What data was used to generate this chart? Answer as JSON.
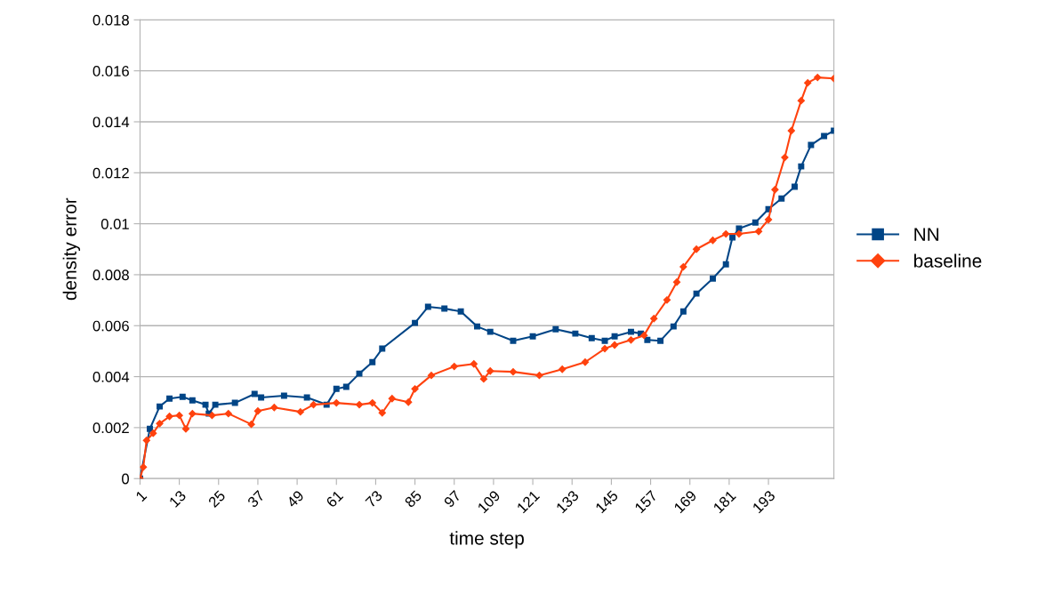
{
  "chart_data": {
    "type": "line",
    "xlabel": "time step",
    "ylabel": "density error",
    "xlim": [
      1,
      213
    ],
    "xticks": [
      1,
      13,
      25,
      37,
      49,
      61,
      73,
      85,
      97,
      109,
      121,
      133,
      145,
      157,
      169,
      181,
      193
    ],
    "ylim": [
      0,
      0.018
    ],
    "yticks": [
      0,
      0.002,
      0.004,
      0.006,
      0.008,
      0.01,
      0.012,
      0.014,
      0.016,
      0.018
    ],
    "grid": "y",
    "legend": "right",
    "series": [
      {
        "name": "NN",
        "color": "#004586",
        "marker": "square",
        "x": [
          1,
          4,
          7,
          10,
          14,
          17,
          21,
          22,
          24,
          30,
          36,
          38,
          45,
          52,
          58,
          61,
          64,
          68,
          72,
          75,
          85,
          89,
          94,
          99,
          104,
          108,
          115,
          121,
          128,
          134,
          139,
          143,
          146,
          151,
          154,
          156,
          160,
          164,
          167,
          171,
          176,
          180,
          182,
          184,
          189,
          193,
          197,
          201,
          203,
          206,
          210,
          213
        ],
        "values": [
          0,
          0.00195,
          0.00283,
          0.00314,
          0.00321,
          0.00307,
          0.0029,
          0.00255,
          0.0029,
          0.00297,
          0.00332,
          0.00318,
          0.00325,
          0.00318,
          0.0029,
          0.00352,
          0.0036,
          0.00412,
          0.00457,
          0.0051,
          0.00611,
          0.00674,
          0.00667,
          0.00656,
          0.00597,
          0.00576,
          0.00541,
          0.00558,
          0.00586,
          0.00569,
          0.00551,
          0.00541,
          0.00558,
          0.00576,
          0.00569,
          0.00544,
          0.00541,
          0.00597,
          0.00656,
          0.00726,
          0.00785,
          0.00841,
          0.00946,
          0.00981,
          0.01005,
          0.01057,
          0.01099,
          0.01145,
          0.01225,
          0.01309,
          0.01344,
          0.01365
        ]
      },
      {
        "name": "baseline",
        "color": "#ff420e",
        "marker": "diamond",
        "x": [
          1,
          2,
          3,
          5,
          7,
          10,
          13,
          15,
          17,
          23,
          28,
          35,
          37,
          42,
          50,
          54,
          61,
          68,
          72,
          75,
          78,
          83,
          85,
          90,
          97,
          103,
          106,
          108,
          115,
          123,
          130,
          137,
          143,
          146,
          151,
          155,
          158,
          162,
          165,
          167,
          171,
          176,
          180,
          184,
          190,
          193,
          195,
          198,
          200,
          203,
          205,
          208,
          213
        ],
        "values": [
          0,
          0.00045,
          0.0015,
          0.00178,
          0.00216,
          0.00244,
          0.00248,
          0.00195,
          0.00255,
          0.00248,
          0.00255,
          0.00213,
          0.00265,
          0.00279,
          0.00262,
          0.0029,
          0.00297,
          0.0029,
          0.00297,
          0.00258,
          0.00314,
          0.003,
          0.00352,
          0.00405,
          0.0044,
          0.0045,
          0.00391,
          0.00422,
          0.00419,
          0.00405,
          0.00429,
          0.00457,
          0.0051,
          0.00524,
          0.00544,
          0.00562,
          0.00628,
          0.00701,
          0.00771,
          0.00831,
          0.009,
          0.00935,
          0.0096,
          0.0096,
          0.0097,
          0.01016,
          0.01134,
          0.0126,
          0.01365,
          0.01483,
          0.01553,
          0.01574,
          0.0157
        ]
      }
    ]
  }
}
